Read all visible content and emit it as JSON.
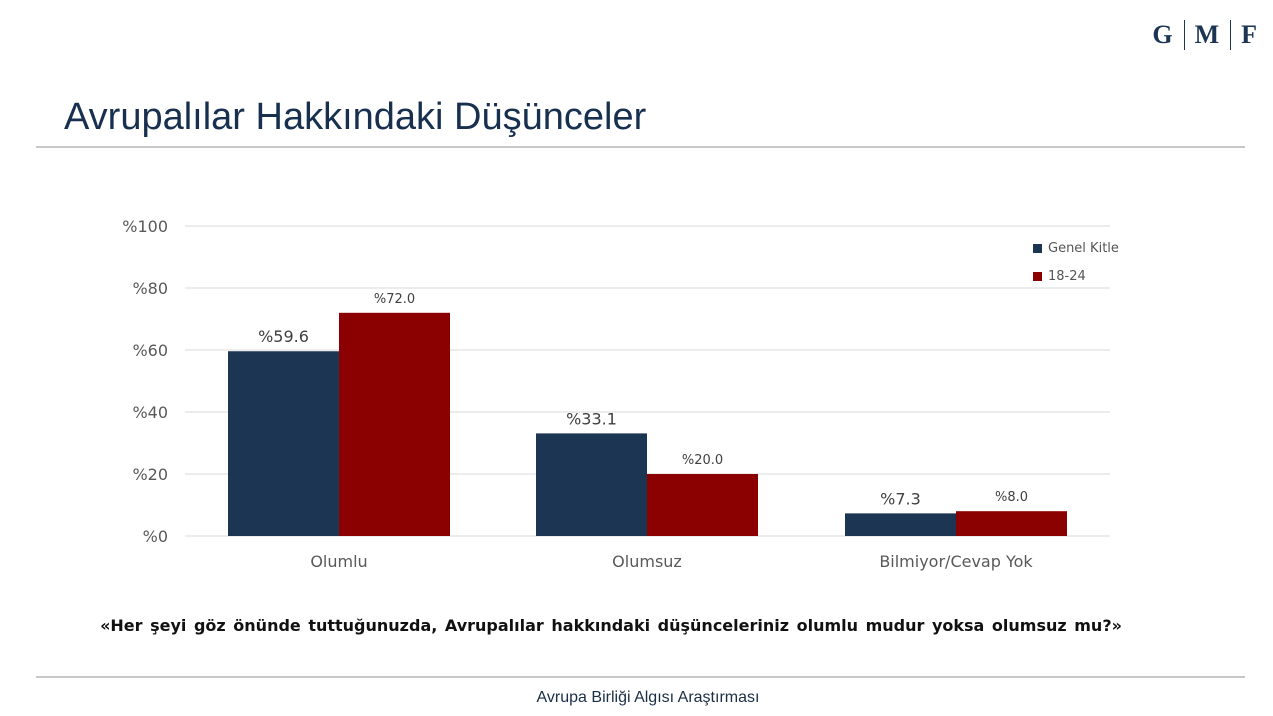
{
  "header": {
    "logo_letters": [
      "G",
      "M",
      "F"
    ],
    "title": "Avrupalılar Hakkındaki Düşünceler"
  },
  "question": "«Her şeyi göz önünde tuttuğunuzda,  Avrupalılar  hakkındaki  düşünceleriniz  olumlu  mudur  yoksa  olumsuz  mu?»",
  "footer": "Avrupa Birliği Algısı Araştırması",
  "colors": {
    "genel_kitle": "#1b3552",
    "age_18_24": "#8b0000",
    "grid": "#d9d9d9",
    "axis_text": "#595959"
  },
  "chart_data": {
    "type": "bar",
    "categories": [
      "Olumlu",
      "Olumsuz",
      "Bilmiyor/Cevap Yok"
    ],
    "series": [
      {
        "name": "Genel Kitle",
        "values": [
          59.6,
          33.1,
          7.3
        ],
        "labels": [
          "%59.6",
          "%33.1",
          "%7.3"
        ],
        "color": "#1b3552"
      },
      {
        "name": "18-24",
        "values": [
          72.0,
          20.0,
          8.0
        ],
        "labels": [
          "%72.0",
          "%20.0",
          "%8.0"
        ],
        "color": "#8b0000"
      }
    ],
    "ylim": [
      0,
      100
    ],
    "yticks": [
      "%0",
      "%20",
      "%40",
      "%60",
      "%80",
      "%100"
    ],
    "ytick_values": [
      0,
      20,
      40,
      60,
      80,
      100
    ],
    "grid": true,
    "legend_position": "top-right"
  }
}
